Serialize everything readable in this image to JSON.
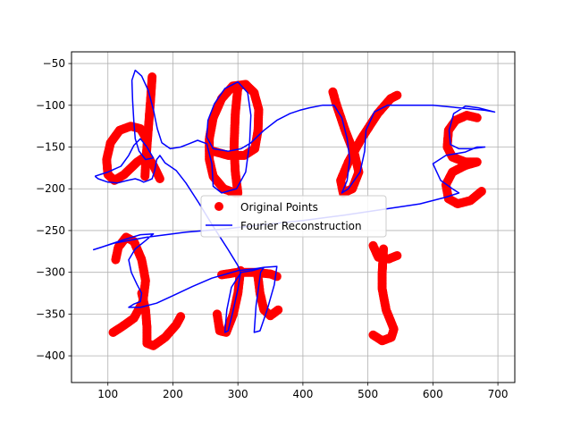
{
  "chart_data": {
    "type": "scatter",
    "title": "",
    "xlabel": "",
    "ylabel": "",
    "xlim": [
      44,
      726
    ],
    "ylim": [
      -432,
      -36
    ],
    "xticks": [
      100,
      200,
      300,
      400,
      500,
      600,
      700
    ],
    "yticks": [
      -50,
      -100,
      -150,
      -200,
      -250,
      -300,
      -350,
      -400
    ],
    "xtick_labels": [
      "100",
      "200",
      "300",
      "400",
      "500",
      "600",
      "700"
    ],
    "ytick_labels": [
      "−50",
      "−100",
      "−150",
      "−200",
      "−250",
      "−300",
      "−350",
      "−400"
    ],
    "grid": true,
    "legend": {
      "position": "center",
      "entries": [
        "Original Points",
        "Fourier Reconstruction"
      ]
    },
    "colors": {
      "points": "#ff0000",
      "curve": "#0000ff"
    },
    "series": [
      {
        "name": "Original Points",
        "type": "scatter",
        "strokes": [
          [
            [
              168,
              -66
            ],
            [
              166,
              -90
            ],
            [
              163,
              -120
            ],
            [
              160,
              -150
            ],
            [
              158,
              -172
            ],
            [
              157,
              -185
            ]
          ],
          [
            [
              159,
              -140
            ],
            [
              150,
              -128
            ],
            [
              135,
              -125
            ],
            [
              118,
              -130
            ],
            [
              104,
              -145
            ],
            [
              98,
              -165
            ],
            [
              100,
              -183
            ],
            [
              110,
              -190
            ],
            [
              125,
              -183
            ],
            [
              145,
              -168
            ],
            [
              160,
              -160
            ],
            [
              170,
              -172
            ],
            [
              180,
              -188
            ]
          ],
          [
            [
              296,
              -205
            ],
            [
              278,
              -200
            ],
            [
              262,
              -185
            ],
            [
              256,
              -165
            ],
            [
              256,
              -140
            ],
            [
              262,
              -115
            ],
            [
              275,
              -92
            ],
            [
              292,
              -77
            ],
            [
              312,
              -75
            ],
            [
              325,
              -85
            ],
            [
              332,
              -105
            ],
            [
              331,
              -130
            ],
            [
              326,
              -152
            ],
            [
              310,
              -160
            ],
            [
              285,
              -160
            ],
            [
              262,
              -155
            ]
          ],
          [
            [
              300,
              -78
            ],
            [
              296,
              -110
            ],
            [
              294,
              -150
            ],
            [
              296,
              -180
            ],
            [
              300,
              -205
            ]
          ],
          [
            [
              446,
              -84
            ],
            [
              452,
              -100
            ],
            [
              465,
              -130
            ],
            [
              480,
              -160
            ],
            [
              486,
              -180
            ],
            [
              476,
              -200
            ],
            [
              462,
              -205
            ],
            [
              458,
              -190
            ],
            [
              470,
              -168
            ],
            [
              490,
              -140
            ],
            [
              515,
              -110
            ],
            [
              535,
              -92
            ],
            [
              545,
              -88
            ]
          ],
          [
            [
              668,
              -115
            ],
            [
              652,
              -112
            ],
            [
              635,
              -118
            ],
            [
              624,
              -130
            ],
            [
              622,
              -150
            ],
            [
              630,
              -162
            ],
            [
              650,
              -168
            ],
            [
              668,
              -168
            ],
            [
              650,
              -172
            ],
            [
              630,
              -180
            ],
            [
              620,
              -195
            ],
            [
              624,
              -212
            ],
            [
              638,
              -218
            ],
            [
              658,
              -214
            ],
            [
              675,
              -203
            ]
          ],
          [
            [
              140,
              -263
            ],
            [
              128,
              -258
            ],
            [
              116,
              -270
            ],
            [
              112,
              -285
            ]
          ],
          [
            [
              140,
              -263
            ],
            [
              152,
              -285
            ],
            [
              158,
              -310
            ],
            [
              154,
              -335
            ],
            [
              140,
              -355
            ],
            [
              122,
              -365
            ],
            [
              108,
              -372
            ]
          ],
          [
            [
              152,
              -325
            ],
            [
              158,
              -345
            ],
            [
              160,
              -365
            ],
            [
              160,
              -385
            ],
            [
              170,
              -388
            ],
            [
              188,
              -378
            ],
            [
              205,
              -363
            ],
            [
              212,
              -353
            ]
          ],
          [
            [
              275,
              -303
            ],
            [
              300,
              -300
            ],
            [
              325,
              -300
            ],
            [
              350,
              -302
            ],
            [
              360,
              -305
            ]
          ],
          [
            [
              304,
              -298
            ],
            [
              300,
              -325
            ],
            [
              293,
              -350
            ],
            [
              282,
              -372
            ],
            [
              272,
              -370
            ],
            [
              268,
              -350
            ]
          ],
          [
            [
              330,
              -300
            ],
            [
              334,
              -325
            ],
            [
              340,
              -345
            ],
            [
              350,
              -352
            ],
            [
              362,
              -345
            ]
          ],
          [
            [
              508,
              -268
            ],
            [
              516,
              -282
            ],
            [
              532,
              -284
            ],
            [
              545,
              -280
            ]
          ],
          [
            [
              524,
              -272
            ],
            [
              522,
              -300
            ],
            [
              522,
              -320
            ],
            [
              528,
              -345
            ],
            [
              540,
              -368
            ],
            [
              536,
              -378
            ],
            [
              522,
              -382
            ],
            [
              508,
              -375
            ]
          ]
        ]
      },
      {
        "name": "Fourier Reconstruction",
        "type": "line",
        "points": [
          [
            80,
            -185
          ],
          [
            100,
            -180
          ],
          [
            120,
            -173
          ],
          [
            132,
            -160
          ],
          [
            140,
            -148
          ],
          [
            150,
            -140
          ],
          [
            160,
            -150
          ],
          [
            170,
            -163
          ],
          [
            158,
            -165
          ],
          [
            148,
            -155
          ],
          [
            142,
            -140
          ],
          [
            140,
            -120
          ],
          [
            138,
            -95
          ],
          [
            137,
            -70
          ],
          [
            142,
            -58
          ],
          [
            152,
            -65
          ],
          [
            162,
            -82
          ],
          [
            170,
            -105
          ],
          [
            176,
            -128
          ],
          [
            183,
            -145
          ],
          [
            196,
            -152
          ],
          [
            212,
            -150
          ],
          [
            225,
            -146
          ],
          [
            238,
            -142
          ],
          [
            252,
            -146
          ],
          [
            260,
            -170
          ],
          [
            262,
            -197
          ],
          [
            275,
            -205
          ],
          [
            298,
            -200
          ],
          [
            312,
            -180
          ],
          [
            318,
            -145
          ],
          [
            320,
            -112
          ],
          [
            315,
            -85
          ],
          [
            300,
            -72
          ],
          [
            280,
            -80
          ],
          [
            264,
            -98
          ],
          [
            254,
            -118
          ],
          [
            252,
            -138
          ],
          [
            262,
            -152
          ],
          [
            285,
            -155
          ],
          [
            305,
            -152
          ],
          [
            320,
            -145
          ],
          [
            340,
            -130
          ],
          [
            360,
            -118
          ],
          [
            380,
            -110
          ],
          [
            395,
            -106
          ],
          [
            410,
            -103
          ],
          [
            430,
            -100
          ],
          [
            448,
            -100
          ],
          [
            460,
            -115
          ],
          [
            468,
            -140
          ],
          [
            472,
            -165
          ],
          [
            468,
            -190
          ],
          [
            460,
            -205
          ],
          [
            470,
            -200
          ],
          [
            488,
            -180
          ],
          [
            495,
            -155
          ],
          [
            497,
            -130
          ],
          [
            510,
            -108
          ],
          [
            530,
            -100
          ],
          [
            560,
            -100
          ],
          [
            600,
            -100
          ],
          [
            640,
            -103
          ],
          [
            680,
            -106
          ],
          [
            695,
            -108
          ],
          [
            670,
            -103
          ],
          [
            650,
            -101
          ],
          [
            632,
            -110
          ],
          [
            625,
            -130
          ],
          [
            627,
            -147
          ],
          [
            640,
            -152
          ],
          [
            660,
            -152
          ],
          [
            680,
            -150
          ],
          [
            668,
            -150
          ],
          [
            650,
            -156
          ],
          [
            620,
            -160
          ],
          [
            600,
            -170
          ],
          [
            612,
            -190
          ],
          [
            630,
            -200
          ],
          [
            640,
            -205
          ],
          [
            620,
            -210
          ],
          [
            580,
            -218
          ],
          [
            520,
            -225
          ],
          [
            460,
            -232
          ],
          [
            400,
            -238
          ],
          [
            340,
            -243
          ],
          [
            280,
            -248
          ],
          [
            220,
            -252
          ],
          [
            160,
            -258
          ],
          [
            110,
            -265
          ],
          [
            78,
            -273
          ],
          [
            90,
            -270
          ],
          [
            120,
            -262
          ],
          [
            150,
            -255
          ],
          [
            170,
            -254
          ],
          [
            158,
            -262
          ],
          [
            142,
            -272
          ],
          [
            132,
            -285
          ],
          [
            136,
            -300
          ],
          [
            145,
            -315
          ],
          [
            152,
            -325
          ],
          [
            150,
            -335
          ],
          [
            140,
            -338
          ],
          [
            132,
            -342
          ],
          [
            150,
            -342
          ],
          [
            175,
            -337
          ],
          [
            200,
            -328
          ],
          [
            230,
            -317
          ],
          [
            260,
            -307
          ],
          [
            300,
            -298
          ],
          [
            325,
            -296
          ],
          [
            340,
            -294
          ],
          [
            360,
            -293
          ],
          [
            356,
            -315
          ],
          [
            345,
            -345
          ],
          [
            334,
            -370
          ],
          [
            325,
            -372
          ],
          [
            328,
            -340
          ],
          [
            335,
            -300
          ],
          [
            340,
            -294
          ],
          [
            322,
            -298
          ],
          [
            305,
            -300
          ],
          [
            290,
            -318
          ],
          [
            283,
            -345
          ],
          [
            280,
            -372
          ],
          [
            285,
            -370
          ],
          [
            292,
            -348
          ],
          [
            300,
            -320
          ],
          [
            304,
            -300
          ],
          [
            300,
            -292
          ],
          [
            285,
            -273
          ],
          [
            262,
            -245
          ],
          [
            240,
            -217
          ],
          [
            220,
            -193
          ],
          [
            205,
            -178
          ],
          [
            188,
            -169
          ],
          [
            180,
            -160
          ],
          [
            175,
            -165
          ],
          [
            172,
            -178
          ],
          [
            168,
            -188
          ],
          [
            162,
            -190
          ],
          [
            155,
            -192
          ],
          [
            150,
            -190
          ],
          [
            142,
            -188
          ],
          [
            130,
            -190
          ],
          [
            115,
            -193
          ],
          [
            100,
            -192
          ],
          [
            85,
            -188
          ],
          [
            80,
            -185
          ]
        ]
      }
    ]
  }
}
